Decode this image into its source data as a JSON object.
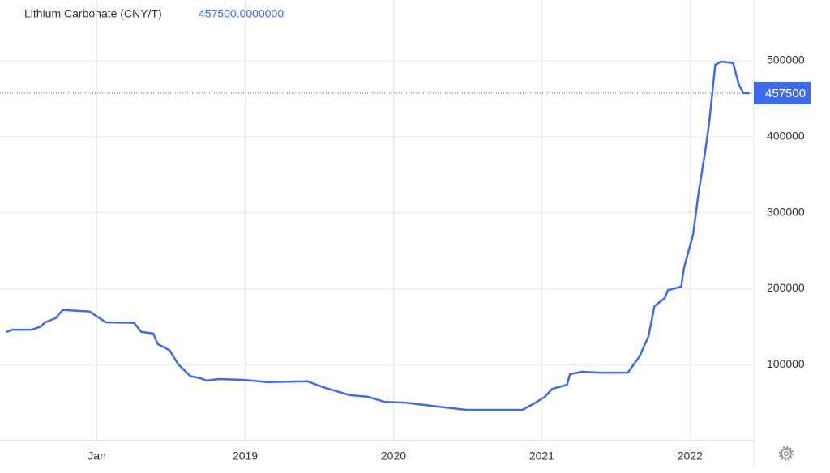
{
  "chart_data": {
    "type": "line",
    "title": "Lithium Carbonate (CNY/T)",
    "price_text": "457500.0000000",
    "last_price": 457500,
    "x": [
      2017.39,
      2017.43,
      2017.56,
      2017.62,
      2017.65,
      2017.72,
      2017.77,
      2017.95,
      2018.06,
      2018.25,
      2018.3,
      2018.38,
      2018.41,
      2018.49,
      2018.55,
      2018.63,
      2018.7,
      2018.74,
      2018.82,
      2018.99,
      2019.09,
      2019.15,
      2019.42,
      2019.53,
      2019.7,
      2019.83,
      2019.94,
      2020.08,
      2020.3,
      2020.49,
      2020.87,
      2020.95,
      2021.02,
      2021.07,
      2021.17,
      2021.19,
      2021.27,
      2021.39,
      2021.58,
      2021.66,
      2021.72,
      2021.76,
      2021.83,
      2021.85,
      2021.94,
      2021.96,
      2022.02,
      2022.06,
      2022.1,
      2022.13,
      2022.17,
      2022.21,
      2022.29,
      2022.33,
      2022.36,
      2022.4
    ],
    "series": [
      {
        "name": "Lithium Carbonate",
        "color": "#3f6ae8",
        "values": [
          142900,
          146000,
          146000,
          150000,
          155700,
          161000,
          172000,
          170000,
          155700,
          155000,
          143000,
          141000,
          127000,
          119000,
          100000,
          85000,
          82000,
          79000,
          81000,
          80000,
          78000,
          77000,
          78000,
          70000,
          60000,
          57600,
          51000,
          50000,
          44800,
          40500,
          40500,
          49000,
          57600,
          68000,
          73500,
          87400,
          90600,
          89500,
          89500,
          111000,
          137500,
          177000,
          187600,
          198000,
          202600,
          228000,
          270800,
          329500,
          377400,
          420000,
          494700,
          499000,
          497000,
          468000,
          457500,
          457500
        ]
      }
    ],
    "xlim": [
      2017.39,
      2022.43
    ],
    "xticks": [
      {
        "value": 2018,
        "label": "Jan"
      },
      2019,
      2020,
      2021,
      2022
    ],
    "ylim": [
      0,
      580000
    ],
    "yticks": [
      100000,
      200000,
      300000,
      400000,
      500000
    ],
    "grid": true
  }
}
